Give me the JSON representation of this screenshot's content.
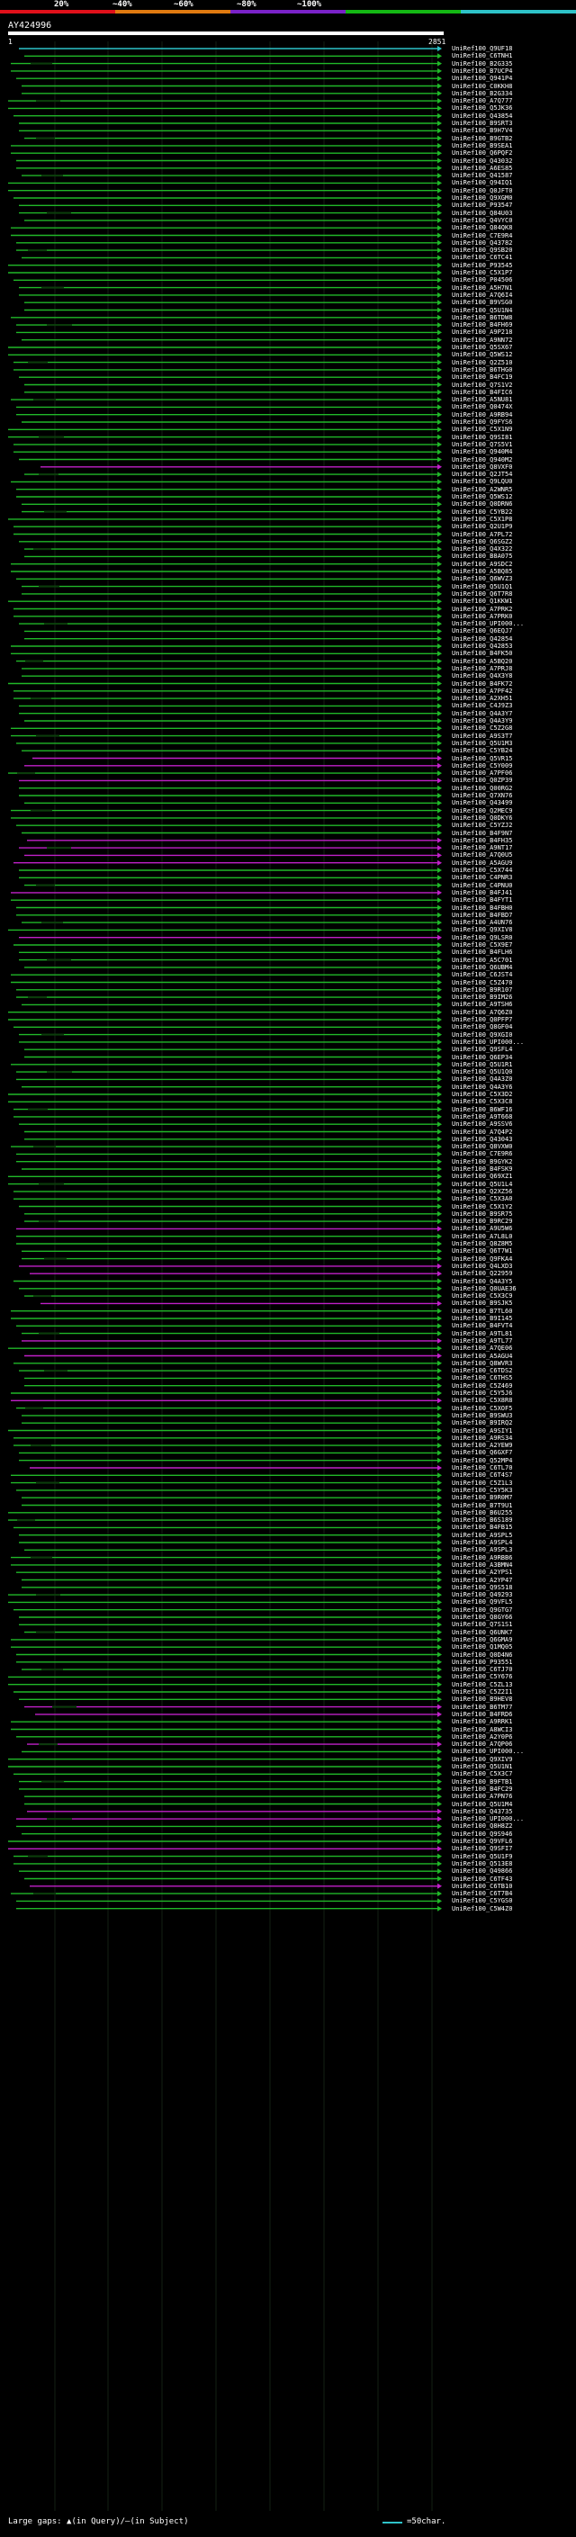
{
  "scale": {
    "labels": [
      "20%",
      "~40%",
      "~60%",
      "~80%",
      "~100%"
    ],
    "colors": [
      "#e0101a",
      "#e07a10",
      "#7a22c8",
      "#14b814",
      "#2ec3c9"
    ]
  },
  "query": {
    "id": "AY424996",
    "start": "1",
    "end": "2851"
  },
  "hits": [
    {
      "id": "UniRef100_Q9UF18",
      "c": "c"
    },
    {
      "id": "UniRef100_C6TNH1",
      "c": "g"
    },
    {
      "id": "UniRef100_B2G335",
      "c": "g"
    },
    {
      "id": "UniRef100_B7UCP4",
      "c": "g"
    },
    {
      "id": "UniRef100_Q941P4",
      "c": "g"
    },
    {
      "id": "UniRef100_C0KKH8",
      "c": "g"
    },
    {
      "id": "UniRef100_B2G334",
      "c": "g"
    },
    {
      "id": "UniRef100_A7Q777",
      "c": "g"
    },
    {
      "id": "UniRef100_Q5JK36",
      "c": "g"
    },
    {
      "id": "UniRef100_Q43854",
      "c": "g"
    },
    {
      "id": "UniRef100_B9SRT3",
      "c": "g"
    },
    {
      "id": "UniRef100_B9H7V4",
      "c": "g"
    },
    {
      "id": "UniRef100_B9GTB2",
      "c": "g"
    },
    {
      "id": "UniRef100_B9SEA1",
      "c": "g"
    },
    {
      "id": "UniRef100_Q6PQF2",
      "c": "g"
    },
    {
      "id": "UniRef100_Q43032",
      "c": "g"
    },
    {
      "id": "UniRef100_A6ES85",
      "c": "g"
    },
    {
      "id": "UniRef100_Q41587",
      "c": "g"
    },
    {
      "id": "UniRef100_Q94IQ1",
      "c": "g"
    },
    {
      "id": "UniRef100_Q0JFT0",
      "c": "g"
    },
    {
      "id": "UniRef100_Q9XGM0",
      "c": "g"
    },
    {
      "id": "UniRef100_P93547",
      "c": "g"
    },
    {
      "id": "UniRef100_Q84U03",
      "c": "g"
    },
    {
      "id": "UniRef100_Q4VYC0",
      "c": "g"
    },
    {
      "id": "UniRef100_Q84QK8",
      "c": "g"
    },
    {
      "id": "UniRef100_C7E9R4",
      "c": "g"
    },
    {
      "id": "UniRef100_Q43782",
      "c": "g"
    },
    {
      "id": "UniRef100_Q9SB20",
      "c": "g"
    },
    {
      "id": "UniRef100_C6TC41",
      "c": "g"
    },
    {
      "id": "UniRef100_P93545",
      "c": "g"
    },
    {
      "id": "UniRef100_C5X1P7",
      "c": "g"
    },
    {
      "id": "UniRef100_P04506",
      "c": "g"
    },
    {
      "id": "UniRef100_A5H7N1",
      "c": "g"
    },
    {
      "id": "UniRef100_A7Q6I4",
      "c": "g"
    },
    {
      "id": "UniRef100_B9VSG0",
      "c": "g"
    },
    {
      "id": "UniRef100_Q5U1N4",
      "c": "g"
    },
    {
      "id": "UniRef100_B6TDW8",
      "c": "g"
    },
    {
      "id": "UniRef100_B4FH69",
      "c": "g"
    },
    {
      "id": "UniRef100_A9P218",
      "c": "g"
    },
    {
      "id": "UniRef100_A9NN72",
      "c": "g"
    },
    {
      "id": "UniRef100_Q5SX67",
      "c": "g"
    },
    {
      "id": "UniRef100_Q5WS12",
      "c": "g"
    },
    {
      "id": "UniRef100_Q2Z510",
      "c": "g"
    },
    {
      "id": "UniRef100_B6THG0",
      "c": "g"
    },
    {
      "id": "UniRef100_B4FC19",
      "c": "g"
    },
    {
      "id": "UniRef100_Q7S1V2",
      "c": "g"
    },
    {
      "id": "UniRef100_B4FIC6",
      "c": "g"
    },
    {
      "id": "UniRef100_A5NU81",
      "c": "g"
    },
    {
      "id": "UniRef100_Q0474X",
      "c": "g"
    },
    {
      "id": "UniRef100_A9RB94",
      "c": "g"
    },
    {
      "id": "UniRef100_Q9FYS6",
      "c": "g"
    },
    {
      "id": "UniRef100_C5X1N9",
      "c": "g"
    },
    {
      "id": "UniRef100_Q9SI81",
      "c": "g"
    },
    {
      "id": "UniRef100_Q7S5V1",
      "c": "g"
    },
    {
      "id": "UniRef100_Q940M4",
      "c": "g"
    },
    {
      "id": "UniRef100_Q940M2",
      "c": "g"
    },
    {
      "id": "UniRef100_Q8VXF0",
      "c": "m"
    },
    {
      "id": "UniRef100_Q2JT54",
      "c": "g"
    },
    {
      "id": "UniRef100_Q9LQU0",
      "c": "g"
    },
    {
      "id": "UniRef100_A2WNR5",
      "c": "g"
    },
    {
      "id": "UniRef100_Q5WS12",
      "c": "g"
    },
    {
      "id": "UniRef100_Q0DRN6",
      "c": "g"
    },
    {
      "id": "UniRef100_C5YB22",
      "c": "g"
    },
    {
      "id": "UniRef100_C5X1P8",
      "c": "g"
    },
    {
      "id": "UniRef100_Q2U1P9",
      "c": "g"
    },
    {
      "id": "UniRef100_A7PL72",
      "c": "g"
    },
    {
      "id": "UniRef100_Q6SGZ2",
      "c": "g"
    },
    {
      "id": "UniRef100_Q4X322",
      "c": "g"
    },
    {
      "id": "UniRef100_B8A075",
      "c": "g"
    },
    {
      "id": "UniRef100_A9SDC2",
      "c": "g"
    },
    {
      "id": "UniRef100_A5BQ85",
      "c": "g"
    },
    {
      "id": "UniRef100_Q6WVZ3",
      "c": "g"
    },
    {
      "id": "UniRef100_Q5U1Q1",
      "c": "g"
    },
    {
      "id": "UniRef100_Q6T7R8",
      "c": "g"
    },
    {
      "id": "UniRef100_Q1KKW1",
      "c": "g"
    },
    {
      "id": "UniRef100_A7PRK2",
      "c": "g"
    },
    {
      "id": "UniRef100_A7PRK0",
      "c": "g"
    },
    {
      "id": "UniRef100_UPI000...",
      "c": "g"
    },
    {
      "id": "UniRef100_Q6EQJ7",
      "c": "g"
    },
    {
      "id": "UniRef100_Q42854",
      "c": "g"
    },
    {
      "id": "UniRef100_Q42853",
      "c": "g"
    },
    {
      "id": "UniRef100_B4FK50",
      "c": "g"
    },
    {
      "id": "UniRef100_A5BQ20",
      "c": "g"
    },
    {
      "id": "UniRef100_A7PRJ8",
      "c": "g"
    },
    {
      "id": "UniRef100_Q4X3Y8",
      "c": "g"
    },
    {
      "id": "UniRef100_B4FK72",
      "c": "g"
    },
    {
      "id": "UniRef100_A7PF42",
      "c": "g"
    },
    {
      "id": "UniRef100_A2XH51",
      "c": "g"
    },
    {
      "id": "UniRef100_C4J9Z3",
      "c": "g"
    },
    {
      "id": "UniRef100_Q4A3Y7",
      "c": "g"
    },
    {
      "id": "UniRef100_Q4A3Y9",
      "c": "g"
    },
    {
      "id": "UniRef100_C5Z2G8",
      "c": "g"
    },
    {
      "id": "UniRef100_A9S3T7",
      "c": "g"
    },
    {
      "id": "UniRef100_Q5U1M3",
      "c": "g"
    },
    {
      "id": "UniRef100_C5YB24",
      "c": "g"
    },
    {
      "id": "UniRef100_Q5VR15",
      "c": "m"
    },
    {
      "id": "UniRef100_C5Y009",
      "c": "m"
    },
    {
      "id": "UniRef100_A7PF06",
      "c": "g"
    },
    {
      "id": "UniRef100_Q0ZP39",
      "c": "m"
    },
    {
      "id": "UniRef100_Q00RG2",
      "c": "g"
    },
    {
      "id": "UniRef100_Q7XN76",
      "c": "g"
    },
    {
      "id": "UniRef100_Q43499",
      "c": "g"
    },
    {
      "id": "UniRef100_Q2MEC9",
      "c": "g"
    },
    {
      "id": "UniRef100_Q0DKY6",
      "c": "g"
    },
    {
      "id": "UniRef100_C5YZJ2",
      "c": "g"
    },
    {
      "id": "UniRef100_B4F9N7",
      "c": "g"
    },
    {
      "id": "UniRef100_B4FH35",
      "c": "m"
    },
    {
      "id": "UniRef100_A9NT17",
      "c": "m"
    },
    {
      "id": "UniRef100_A7Q0U5",
      "c": "m"
    },
    {
      "id": "UniRef100_A5AGU9",
      "c": "m"
    },
    {
      "id": "UniRef100_C5X744",
      "c": "g"
    },
    {
      "id": "UniRef100_C4PNR3",
      "c": "g"
    },
    {
      "id": "UniRef100_C4PNU0",
      "c": "g"
    },
    {
      "id": "UniRef100_B4FJ41",
      "c": "m"
    },
    {
      "id": "UniRef100_B4FYT1",
      "c": "g"
    },
    {
      "id": "UniRef100_B4FBH0",
      "c": "g"
    },
    {
      "id": "UniRef100_B4FBD7",
      "c": "g"
    },
    {
      "id": "UniRef100_A4UN76",
      "c": "g"
    },
    {
      "id": "UniRef100_Q9XIV8",
      "c": "g"
    },
    {
      "id": "UniRef100_Q9LSR0",
      "c": "m"
    },
    {
      "id": "UniRef100_C5X9E7",
      "c": "g"
    },
    {
      "id": "UniRef100_B4FLH6",
      "c": "g"
    },
    {
      "id": "UniRef100_A5C701",
      "c": "g"
    },
    {
      "id": "UniRef100_Q6UBM4",
      "c": "g"
    },
    {
      "id": "UniRef100_C6JST4",
      "c": "g"
    },
    {
      "id": "UniRef100_C5Z470",
      "c": "g"
    },
    {
      "id": "UniRef100_B9R107",
      "c": "g"
    },
    {
      "id": "UniRef100_B9IM26",
      "c": "g"
    },
    {
      "id": "UniRef100_A9TSH6",
      "c": "g"
    },
    {
      "id": "UniRef100_A7Q6Z0",
      "c": "g"
    },
    {
      "id": "UniRef100_Q0PFP7",
      "c": "g"
    },
    {
      "id": "UniRef100_Q8GF04",
      "c": "g"
    },
    {
      "id": "UniRef100_Q9XGI0",
      "c": "g"
    },
    {
      "id": "UniRef100_UPI000...",
      "c": "g"
    },
    {
      "id": "UniRef100_Q9SFL4",
      "c": "g"
    },
    {
      "id": "UniRef100_Q6EP34",
      "c": "g"
    },
    {
      "id": "UniRef100_Q5U1R1",
      "c": "g"
    },
    {
      "id": "UniRef100_Q5U1Q0",
      "c": "g"
    },
    {
      "id": "UniRef100_Q4A3Z0",
      "c": "g"
    },
    {
      "id": "UniRef100_Q4A3Y6",
      "c": "g"
    },
    {
      "id": "UniRef100_C5X3D2",
      "c": "g"
    },
    {
      "id": "UniRef100_C5X3C8",
      "c": "g"
    },
    {
      "id": "UniRef100_B6WF16",
      "c": "g"
    },
    {
      "id": "UniRef100_A9T668",
      "c": "g"
    },
    {
      "id": "UniRef100_A9SSV6",
      "c": "g"
    },
    {
      "id": "UniRef100_A7Q4P2",
      "c": "g"
    },
    {
      "id": "UniRef100_Q43043",
      "c": "g"
    },
    {
      "id": "UniRef100_Q8VXW0",
      "c": "g"
    },
    {
      "id": "UniRef100_C7E9R6",
      "c": "g"
    },
    {
      "id": "UniRef100_B9GYK2",
      "c": "g"
    },
    {
      "id": "UniRef100_B4FSK9",
      "c": "g"
    },
    {
      "id": "UniRef100_Q69XZ1",
      "c": "g"
    },
    {
      "id": "UniRef100_Q5U1L4",
      "c": "g"
    },
    {
      "id": "UniRef100_Q2XZ56",
      "c": "g"
    },
    {
      "id": "UniRef100_C5X3A0",
      "c": "g"
    },
    {
      "id": "UniRef100_C5X1Y2",
      "c": "g"
    },
    {
      "id": "UniRef100_B9SR75",
      "c": "g"
    },
    {
      "id": "UniRef100_B9RC29",
      "c": "g"
    },
    {
      "id": "UniRef100_A9U5W6",
      "c": "m"
    },
    {
      "id": "UniRef100_A7L8L0",
      "c": "g"
    },
    {
      "id": "UniRef100_Q8Z8M5",
      "c": "g"
    },
    {
      "id": "UniRef100_Q6T7W1",
      "c": "g"
    },
    {
      "id": "UniRef100_Q9FKA4",
      "c": "g"
    },
    {
      "id": "UniRef100_Q4LXD3",
      "c": "m"
    },
    {
      "id": "UniRef100_Q22959",
      "c": "m"
    },
    {
      "id": "UniRef100_Q4A3Y5",
      "c": "g"
    },
    {
      "id": "UniRef100_Q0UAE36",
      "c": "g"
    },
    {
      "id": "UniRef100_C5X3C9",
      "c": "g"
    },
    {
      "id": "UniRef100_B9SJK5",
      "c": "m"
    },
    {
      "id": "UniRef100_B7TL60",
      "c": "g"
    },
    {
      "id": "UniRef100_B9I145",
      "c": "g"
    },
    {
      "id": "UniRef100_B4FVT4",
      "c": "g"
    },
    {
      "id": "UniRef100_A9TL81",
      "c": "g"
    },
    {
      "id": "UniRef100_A9TL77",
      "c": "m"
    },
    {
      "id": "UniRef100_A7QE06",
      "c": "g"
    },
    {
      "id": "UniRef100_A5AGU4",
      "c": "m"
    },
    {
      "id": "UniRef100_Q8WVR3",
      "c": "g"
    },
    {
      "id": "UniRef100_C6TDS2",
      "c": "g"
    },
    {
      "id": "UniRef100_C6THS5",
      "c": "g"
    },
    {
      "id": "UniRef100_C5Z469",
      "c": "g"
    },
    {
      "id": "UniRef100_C5Y5J6",
      "c": "g"
    },
    {
      "id": "UniRef100_C5X8R8",
      "c": "m"
    },
    {
      "id": "UniRef100_C5XOF5",
      "c": "g"
    },
    {
      "id": "UniRef100_B9SWU3",
      "c": "g"
    },
    {
      "id": "UniRef100_B9IRQ2",
      "c": "g"
    },
    {
      "id": "UniRef100_A9SIY1",
      "c": "g"
    },
    {
      "id": "UniRef100_A9RS34",
      "c": "g"
    },
    {
      "id": "UniRef100_A2YEW9",
      "c": "g"
    },
    {
      "id": "UniRef100_Q6GXF7",
      "c": "g"
    },
    {
      "id": "UniRef100_Q52MP4",
      "c": "g"
    },
    {
      "id": "UniRef100_C6TL70",
      "c": "m"
    },
    {
      "id": "UniRef100_C6T4S7",
      "c": "g"
    },
    {
      "id": "UniRef100_C5Z1L3",
      "c": "g"
    },
    {
      "id": "UniRef100_C5Y5K3",
      "c": "g"
    },
    {
      "id": "UniRef100_B9R0M7",
      "c": "g"
    },
    {
      "id": "UniRef100_B7T9U1",
      "c": "g"
    },
    {
      "id": "UniRef100_B6U255",
      "c": "g"
    },
    {
      "id": "UniRef100_B6S189",
      "c": "g"
    },
    {
      "id": "UniRef100_B4FB15",
      "c": "g"
    },
    {
      "id": "UniRef100_A9SPL5",
      "c": "g"
    },
    {
      "id": "UniRef100_A9SPL4",
      "c": "g"
    },
    {
      "id": "UniRef100_A9SPL3",
      "c": "g"
    },
    {
      "id": "UniRef100_A9RBB6",
      "c": "g"
    },
    {
      "id": "UniRef100_A3BMN4",
      "c": "g"
    },
    {
      "id": "UniRef100_A2YPS1",
      "c": "g"
    },
    {
      "id": "UniRef100_A2YP47",
      "c": "g"
    },
    {
      "id": "UniRef100_Q9S518",
      "c": "g"
    },
    {
      "id": "UniRef100_Q49293",
      "c": "g"
    },
    {
      "id": "UniRef100_Q9VFL5",
      "c": "g"
    },
    {
      "id": "UniRef100_Q9GTG7",
      "c": "g"
    },
    {
      "id": "UniRef100_Q8GY66",
      "c": "g"
    },
    {
      "id": "UniRef100_Q7S1S1",
      "c": "g"
    },
    {
      "id": "UniRef100_Q6UNK7",
      "c": "g"
    },
    {
      "id": "UniRef100_Q6GMA9",
      "c": "g"
    },
    {
      "id": "UniRef100_Q1MQ05",
      "c": "g"
    },
    {
      "id": "UniRef100_Q0D4N6",
      "c": "g"
    },
    {
      "id": "UniRef100_P93551",
      "c": "g"
    },
    {
      "id": "UniRef100_C6TJ70",
      "c": "g"
    },
    {
      "id": "UniRef100_C5Y676",
      "c": "g"
    },
    {
      "id": "UniRef100_C5ZL13",
      "c": "g"
    },
    {
      "id": "UniRef100_C5Z2I1",
      "c": "g"
    },
    {
      "id": "UniRef100_B9HEV8",
      "c": "g"
    },
    {
      "id": "UniRef100_B6TM77",
      "c": "m"
    },
    {
      "id": "UniRef100_B4FRD6",
      "c": "m"
    },
    {
      "id": "UniRef100_A9RRK1",
      "c": "g"
    },
    {
      "id": "UniRef100_A8WCI3",
      "c": "g"
    },
    {
      "id": "UniRef100_A2Y0P6",
      "c": "g"
    },
    {
      "id": "UniRef100_A7QP06",
      "c": "m"
    },
    {
      "id": "UniRef100_UPI000...",
      "c": "g"
    },
    {
      "id": "UniRef100_Q9XIV9",
      "c": "g"
    },
    {
      "id": "UniRef100_Q5U1N1",
      "c": "g"
    },
    {
      "id": "UniRef100_C5X3C7",
      "c": "g"
    },
    {
      "id": "UniRef100_B9FTB1",
      "c": "g"
    },
    {
      "id": "UniRef100_B4FC29",
      "c": "g"
    },
    {
      "id": "UniRef100_A7PN76",
      "c": "g"
    },
    {
      "id": "UniRef100_Q5U1M4",
      "c": "g"
    },
    {
      "id": "UniRef100_Q43735",
      "c": "m"
    },
    {
      "id": "UniRef100_UPI000...",
      "c": "m"
    },
    {
      "id": "UniRef100_Q8H8Z2",
      "c": "g"
    },
    {
      "id": "UniRef100_Q9S946",
      "c": "g"
    },
    {
      "id": "UniRef100_Q9VFL6",
      "c": "g"
    },
    {
      "id": "UniRef100_Q9SFI7",
      "c": "m"
    },
    {
      "id": "UniRef100_Q5U1F9",
      "c": "g"
    },
    {
      "id": "UniRef100_Q513E8",
      "c": "g"
    },
    {
      "id": "UniRef100_Q49866",
      "c": "g"
    },
    {
      "id": "UniRef100_C6TF43",
      "c": "g"
    },
    {
      "id": "UniRef100_C6TB10",
      "c": "m"
    },
    {
      "id": "UniRef100_C6T7B4",
      "c": "g"
    },
    {
      "id": "UniRef100_C5YGS0",
      "c": "g"
    },
    {
      "id": "UniRef100_C5W4Z0",
      "c": "g"
    }
  ],
  "legend": {
    "gaps": "Large gaps: ▲(in Query)/—(in Subject)",
    "scale": "=50char."
  },
  "colors": {
    "green": "#20b828",
    "magenta": "#c020c8",
    "cyan": "#2ec3c9",
    "gray": "#1a3a1a"
  }
}
